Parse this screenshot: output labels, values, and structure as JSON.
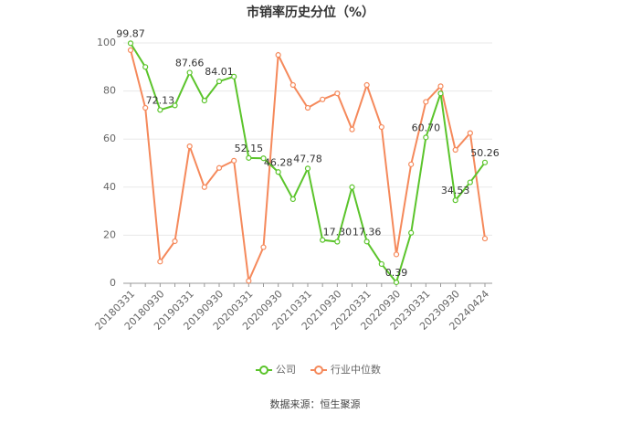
{
  "chart_data": {
    "type": "line",
    "title": "市销率历史分位（%）",
    "source": "数据来源：恒生聚源",
    "categories": [
      "20180331",
      null,
      "20180930",
      null,
      "20190331",
      null,
      "20190930",
      null,
      "20200331",
      null,
      "20200930",
      null,
      "20210331",
      null,
      "20210930",
      null,
      "20220331",
      null,
      "20220930",
      null,
      "20230331",
      null,
      "20230930",
      null,
      "20240424"
    ],
    "series": [
      {
        "name": "公司",
        "color": "#5bc42b",
        "values": [
          99.87,
          90,
          72.13,
          74,
          87.66,
          76,
          84.01,
          86,
          52.15,
          52,
          46.28,
          35,
          47.78,
          18,
          17.3,
          40,
          17.36,
          8,
          0.39,
          21,
          60.7,
          79,
          34.53,
          42,
          50.26
        ],
        "value_labels": [
          "99.87",
          null,
          "72.13",
          null,
          "87.66",
          null,
          "84.01",
          null,
          "52.15",
          null,
          "46.28",
          null,
          "47.78",
          null,
          "17.30",
          null,
          "17.36",
          null,
          "0.39",
          null,
          "60.70",
          null,
          "34.53",
          null,
          "50.26"
        ]
      },
      {
        "name": "行业中位数",
        "color": "#f5895b",
        "values": [
          97,
          73,
          9,
          17.5,
          57,
          40,
          48,
          51,
          1,
          15,
          95,
          82.5,
          73,
          76.5,
          79,
          64,
          82.5,
          65,
          12,
          49.5,
          75.5,
          82,
          55.5,
          62.5,
          18.6
        ]
      }
    ],
    "ylim": [
      0,
      100
    ],
    "yticks": [
      0,
      20,
      40,
      60,
      80,
      100
    ],
    "grid": true
  }
}
